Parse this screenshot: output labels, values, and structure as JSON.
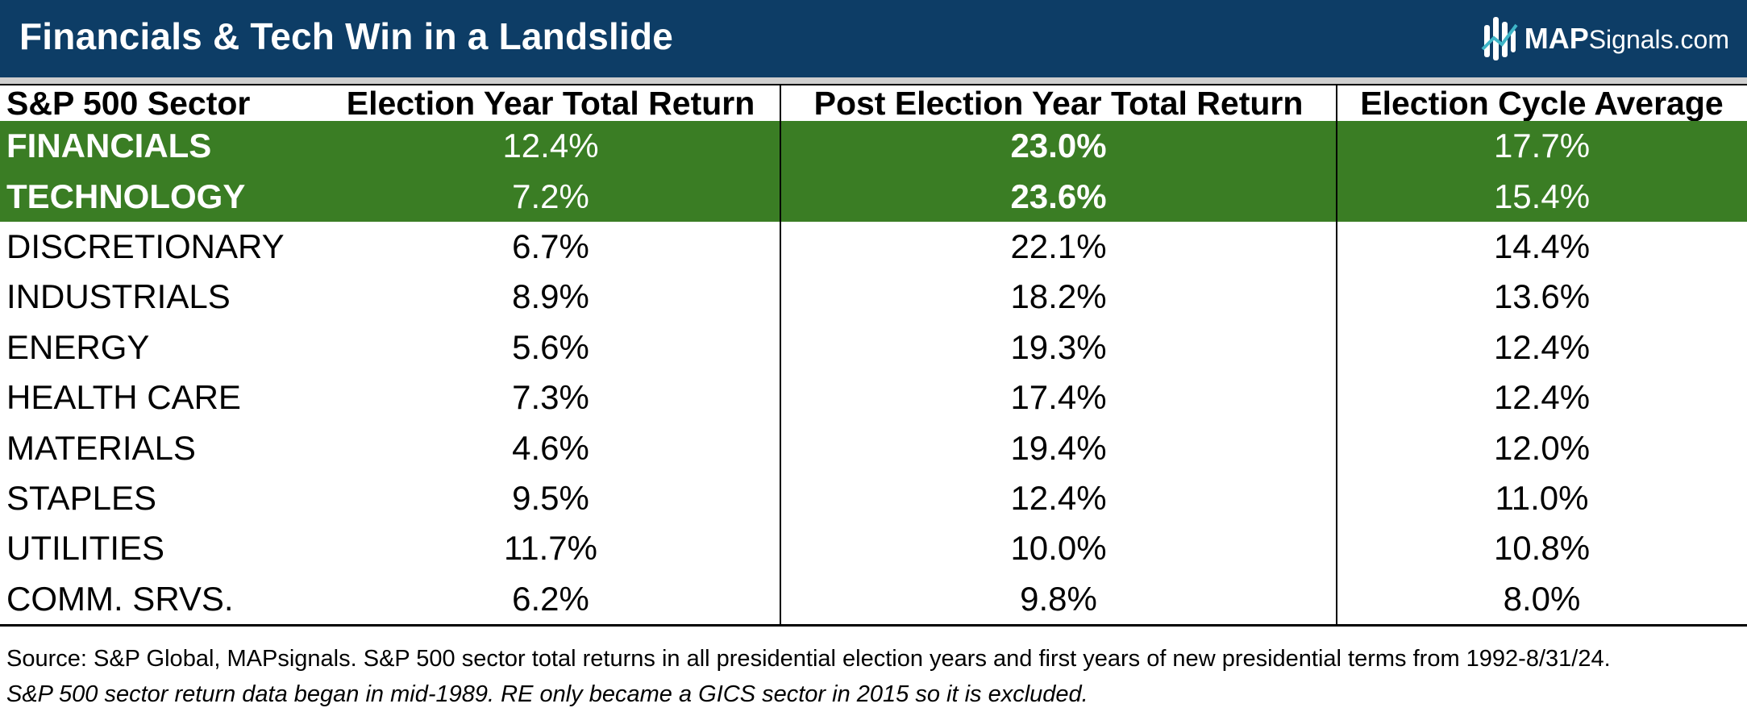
{
  "header": {
    "title": "Financials & Tech Win in a Landslide",
    "logo_bold": "MAP",
    "logo_rest": "Signals.com",
    "background_color": "#0d3d66"
  },
  "highlight_color": "#3a7d24",
  "table": {
    "columns": [
      "S&P 500 Sector",
      "Election Year Total Return",
      "Post Election Year Total Return",
      "Election Cycle Average"
    ],
    "rows": [
      [
        "FINANCIALS",
        "12.4%",
        "23.0%",
        "17.7%"
      ],
      [
        "TECHNOLOGY",
        "7.2%",
        "23.6%",
        "15.4%"
      ],
      [
        "DISCRETIONARY",
        "6.7%",
        "22.1%",
        "14.4%"
      ],
      [
        "INDUSTRIALS",
        "8.9%",
        "18.2%",
        "13.6%"
      ],
      [
        "ENERGY",
        "5.6%",
        "19.3%",
        "12.4%"
      ],
      [
        "HEALTH CARE",
        "7.3%",
        "17.4%",
        "12.4%"
      ],
      [
        "MATERIALS",
        "4.6%",
        "19.4%",
        "12.0%"
      ],
      [
        "STAPLES",
        "9.5%",
        "12.4%",
        "11.0%"
      ],
      [
        "UTILITIES",
        "11.7%",
        "10.0%",
        "10.8%"
      ],
      [
        "COMM. SRVS.",
        "6.2%",
        "9.8%",
        "8.0%"
      ]
    ],
    "highlighted_rows": [
      "FINANCIALS",
      "TECHNOLOGY"
    ]
  },
  "chart_data": {
    "type": "table",
    "title": "Financials & Tech Win in a Landslide",
    "columns": [
      "S&P 500 Sector",
      "Election Year Total Return",
      "Post Election Year Total Return",
      "Election Cycle Average"
    ],
    "categories": [
      "FINANCIALS",
      "TECHNOLOGY",
      "DISCRETIONARY",
      "INDUSTRIALS",
      "ENERGY",
      "HEALTH CARE",
      "MATERIALS",
      "STAPLES",
      "UTILITIES",
      "COMM. SRVS."
    ],
    "series": [
      {
        "name": "Election Year Total Return",
        "values": [
          12.4,
          7.2,
          6.7,
          8.9,
          5.6,
          7.3,
          4.6,
          9.5,
          11.7,
          6.2
        ]
      },
      {
        "name": "Post Election Year Total Return",
        "values": [
          23.0,
          23.6,
          22.1,
          18.2,
          19.3,
          17.4,
          19.4,
          12.4,
          10.0,
          9.8
        ]
      },
      {
        "name": "Election Cycle Average",
        "values": [
          17.7,
          15.4,
          14.4,
          13.6,
          12.4,
          12.4,
          12.0,
          11.0,
          10.8,
          8.0
        ]
      }
    ]
  },
  "footer": {
    "source": "Source: S&P Global, MAPsignals. S&P 500 sector total returns in all presidential election years and first years of new presidential terms from 1992-8/31/24.",
    "note": "S&P 500 sector return data began in mid-1989. RE only became a GICS sector in 2015 so it is excluded."
  }
}
